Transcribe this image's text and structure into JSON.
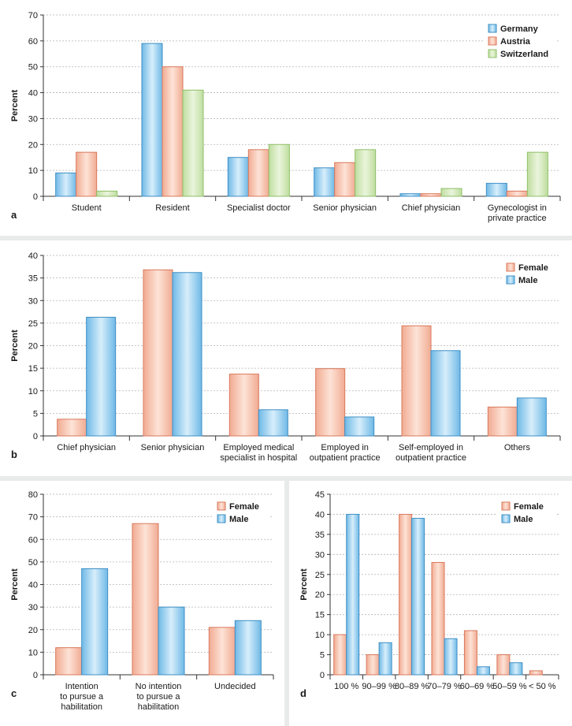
{
  "colors": {
    "germany_blue": "#6fb9e6",
    "austria_orange": "#f1ab92",
    "switzerland_green": "#bfdd9f",
    "female_orange": "#f1ab92",
    "male_blue": "#6fb9e6",
    "blue_stroke": "#3f8fc4",
    "orange_stroke": "#d9795d",
    "green_stroke": "#8fbf68"
  },
  "chart_data": [
    {
      "id": "a",
      "panel_letter": "a",
      "type": "bar",
      "ylabel": "Percent",
      "ylim": [
        0,
        70
      ],
      "ytick_step": 10,
      "legend_position": "top-right",
      "categories": [
        [
          "Student"
        ],
        [
          "Resident"
        ],
        [
          "Specialist doctor"
        ],
        [
          "Senior physician"
        ],
        [
          "Chief physician"
        ],
        [
          "Gynecologist in",
          "private practice"
        ]
      ],
      "series": [
        {
          "name": "Germany",
          "color": "blue",
          "values": [
            9,
            59,
            15,
            11,
            1,
            5
          ]
        },
        {
          "name": "Austria",
          "color": "orange",
          "values": [
            17,
            50,
            18,
            13,
            1,
            2
          ]
        },
        {
          "name": "Switzerland",
          "color": "green",
          "values": [
            2,
            41,
            20,
            18,
            3,
            17
          ]
        }
      ]
    },
    {
      "id": "b",
      "panel_letter": "b",
      "type": "bar",
      "ylabel": "Percent",
      "ylim": [
        0,
        40
      ],
      "ytick_step": 5,
      "legend_position": "top-right",
      "categories": [
        [
          "Chief physician"
        ],
        [
          "Senior physician"
        ],
        [
          "Employed medical",
          "specialist in hospital"
        ],
        [
          "Employed in",
          "outpatient practice"
        ],
        [
          "Self-employed in",
          "outpatient practice"
        ],
        [
          "Others"
        ]
      ],
      "series": [
        {
          "name": "Female",
          "color": "orange",
          "values": [
            3.7,
            36.8,
            13.7,
            14.9,
            24.4,
            6.4
          ]
        },
        {
          "name": "Male",
          "color": "blue",
          "values": [
            26.3,
            36.2,
            5.8,
            4.2,
            18.9,
            8.4
          ]
        }
      ]
    },
    {
      "id": "c",
      "panel_letter": "c",
      "type": "bar",
      "ylabel": "Percent",
      "ylim": [
        0,
        80
      ],
      "ytick_step": 10,
      "legend_position": "top-right",
      "categories": [
        [
          "Intention",
          "to pursue a",
          "habilitation"
        ],
        [
          "No intention",
          "to pursue a",
          "habilitation"
        ],
        [
          "Undecided"
        ]
      ],
      "series": [
        {
          "name": "Female",
          "color": "orange",
          "values": [
            12,
            67,
            21
          ]
        },
        {
          "name": "Male",
          "color": "blue",
          "values": [
            47,
            30,
            24
          ]
        }
      ]
    },
    {
      "id": "d",
      "panel_letter": "d",
      "type": "bar",
      "ylabel": "Percent",
      "ylim": [
        0,
        45
      ],
      "ytick_step": 5,
      "legend_position": "top-right",
      "categories": [
        [
          "100 %"
        ],
        [
          "90–99 %"
        ],
        [
          "80–89 %"
        ],
        [
          "70–79 %"
        ],
        [
          "60–69 %"
        ],
        [
          "50–59 %"
        ],
        [
          "< 50 %"
        ]
      ],
      "series": [
        {
          "name": "Female",
          "color": "orange",
          "values": [
            10,
            5,
            40,
            28,
            11,
            5,
            1
          ]
        },
        {
          "name": "Male",
          "color": "blue",
          "values": [
            40,
            8,
            39,
            9,
            2,
            3,
            0
          ]
        }
      ]
    }
  ]
}
